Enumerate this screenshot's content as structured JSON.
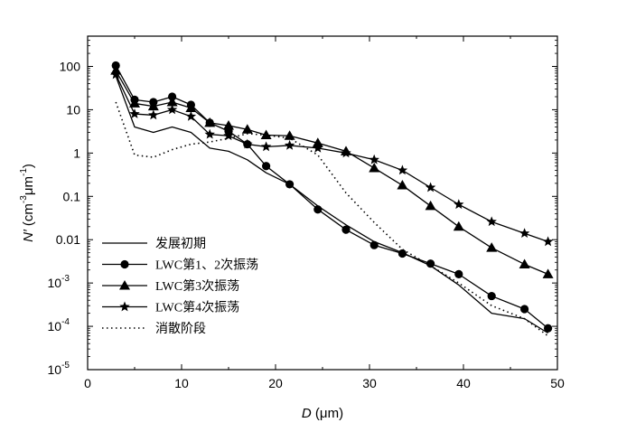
{
  "chart_data": {
    "type": "line",
    "title": "",
    "xlabel": {
      "symbol": "D",
      "unit": " (μm)"
    },
    "ylabel": {
      "symbol": "N",
      "prime": "′",
      "open": " (cm",
      "sup1": "-3",
      "mid": "μm",
      "sup2": "-1",
      "close": ")"
    },
    "x_range": [
      0,
      50
    ],
    "y_range": [
      1e-05,
      500
    ],
    "y_scale": "log",
    "x_ticks": [
      "0",
      "10",
      "20",
      "30",
      "40",
      "50"
    ],
    "y_ticks": [
      {
        "value": 100,
        "label": "100"
      },
      {
        "value": 10,
        "label": "10"
      },
      {
        "value": 1,
        "label": "1"
      },
      {
        "value": 0.1,
        "label": "0.1"
      },
      {
        "value": 0.01,
        "label": "0.01"
      },
      {
        "value": 0.001,
        "label": "10",
        "exp": "-3"
      },
      {
        "value": 0.0001,
        "label": "10",
        "exp": "-4"
      },
      {
        "value": 1e-05,
        "label": "10",
        "exp": "-5"
      }
    ],
    "grid": false,
    "legend_position": "bottom-left",
    "series": [
      {
        "name": "发展初期",
        "marker": "none",
        "dash": "solid",
        "x": [
          3,
          5,
          7,
          9,
          11,
          13,
          15,
          17,
          19,
          21.5,
          24.5,
          27.5,
          30.5,
          33.5,
          36.5,
          39.5,
          43,
          46.5,
          49
        ],
        "y": [
          60,
          4,
          3,
          4,
          3,
          1.3,
          1.1,
          0.7,
          0.35,
          0.19,
          0.06,
          0.022,
          0.009,
          0.005,
          0.0025,
          0.0009,
          0.0002,
          0.00015,
          7e-05
        ]
      },
      {
        "name": "LWC第1、2次振荡",
        "marker": "circle",
        "dash": "solid",
        "x": [
          3,
          5,
          7,
          9,
          11,
          13,
          15,
          17,
          19,
          21.5,
          24.5,
          27.5,
          30.5,
          33.5,
          36.5,
          39.5,
          43,
          46.5,
          49
        ],
        "y": [
          105,
          17,
          15,
          20,
          13,
          5,
          3.2,
          1.6,
          0.5,
          0.19,
          0.05,
          0.017,
          0.0075,
          0.0048,
          0.0028,
          0.0016,
          0.0005,
          0.00025,
          9e-05
        ]
      },
      {
        "name": "LWC第3次振荡",
        "marker": "triangle",
        "dash": "solid",
        "x": [
          3,
          5,
          7,
          9,
          11,
          13,
          15,
          17,
          19,
          21.5,
          24.5,
          27.5,
          30.5,
          33.5,
          36.5,
          39.5,
          43,
          46.5,
          49
        ],
        "y": [
          80,
          14,
          12,
          15,
          11,
          5,
          4.3,
          3.5,
          2.6,
          2.5,
          1.7,
          1.1,
          0.45,
          0.18,
          0.06,
          0.02,
          0.0065,
          0.0027,
          0.0016
        ]
      },
      {
        "name": "LWC第4次振荡",
        "marker": "star",
        "dash": "solid",
        "x": [
          3,
          5,
          7,
          9,
          11,
          13,
          15,
          17,
          19,
          21.5,
          24.5,
          27.5,
          30.5,
          33.5,
          36.5,
          39.5,
          43,
          46.5,
          49
        ],
        "y": [
          65,
          8,
          7.5,
          10,
          7,
          2.7,
          2.5,
          1.6,
          1.4,
          1.5,
          1.3,
          1,
          0.7,
          0.4,
          0.16,
          0.065,
          0.026,
          0.014,
          0.009
        ]
      },
      {
        "name": "消散阶段",
        "marker": "none",
        "dash": "dotted",
        "x": [
          3,
          5,
          7,
          9,
          11,
          13,
          15,
          17,
          19,
          21.5,
          24.5,
          27.5,
          30.5,
          33.5,
          36.5,
          39.5,
          43,
          46.5,
          49
        ],
        "y": [
          15,
          0.9,
          0.8,
          1.2,
          1.6,
          1.8,
          2.2,
          2.8,
          2.6,
          2.2,
          0.9,
          0.12,
          0.025,
          0.006,
          0.0025,
          0.001,
          0.0003,
          0.00015,
          6e-05
        ]
      }
    ]
  }
}
